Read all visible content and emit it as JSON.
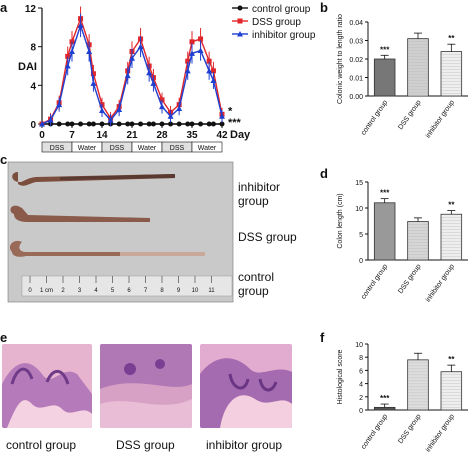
{
  "panels": {
    "a": "a",
    "b": "b",
    "c": "c",
    "d": "d",
    "e": "e",
    "f": "f"
  },
  "chart_data": [
    {
      "type": "line",
      "panel": "a",
      "ylabel": "DAI",
      "xlabel": "Day",
      "ylim": [
        0,
        12
      ],
      "yticks": [
        0,
        4,
        8,
        12
      ],
      "xticks": [
        0,
        7,
        14,
        21,
        28,
        35,
        42
      ],
      "xlim": [
        0,
        42
      ],
      "legend_position": "top-right",
      "significance": [
        "*",
        "***"
      ],
      "treatment_bands": [
        "DSS",
        "Water",
        "DSS",
        "Water",
        "DSS",
        "Water"
      ],
      "x": [
        0,
        2,
        4,
        6,
        7,
        9,
        11,
        12,
        14,
        16,
        18,
        20,
        21,
        23,
        25,
        26,
        28,
        30,
        32,
        34,
        35,
        37,
        39,
        40,
        42
      ],
      "series": [
        {
          "name": "control group",
          "color": "#111111",
          "marker": "circle",
          "values": [
            0,
            0,
            0,
            0,
            0,
            0,
            0,
            0,
            0,
            0,
            0,
            0,
            0,
            0,
            0,
            0,
            0,
            0,
            0,
            0,
            0,
            0,
            0,
            0,
            0
          ]
        },
        {
          "name": "DSS group",
          "color": "#e0262a",
          "marker": "square",
          "values": [
            0,
            0.5,
            2.2,
            7.0,
            8.5,
            10.9,
            8.2,
            5.2,
            2.0,
            0.6,
            1.8,
            5.5,
            7.5,
            8.8,
            6.0,
            4.8,
            2.5,
            1.2,
            2.0,
            6.5,
            8.5,
            8.8,
            6.5,
            5.5,
            1.0
          ]
        },
        {
          "name": "inhibitor group",
          "color": "#1f3fd1",
          "marker": "triangle",
          "values": [
            0,
            0.4,
            2.0,
            6.0,
            7.5,
            10.2,
            7.5,
            4.2,
            1.4,
            0.4,
            1.5,
            5.0,
            6.8,
            8.0,
            5.3,
            4.2,
            1.8,
            0.8,
            1.6,
            5.5,
            7.3,
            7.6,
            5.5,
            4.5,
            0.8
          ]
        }
      ]
    },
    {
      "type": "bar",
      "panel": "b",
      "ylabel": "Colonic weight to length ratio",
      "ylim": [
        0,
        0.04
      ],
      "yticks": [
        0.0,
        0.01,
        0.02,
        0.03,
        0.04
      ],
      "ytick_labels": [
        "0.00",
        "0.01",
        "0.02",
        "0.03",
        "0.04"
      ],
      "categories": [
        "control group",
        "DSS group",
        "inhibitor group"
      ],
      "values": [
        0.02,
        0.031,
        0.024
      ],
      "errors": [
        0.002,
        0.003,
        0.004
      ],
      "annotations": [
        "***",
        "",
        "**"
      ],
      "fills": [
        "#777777",
        "#cfcfcf",
        "#eeeeee"
      ]
    },
    {
      "type": "bar",
      "panel": "d",
      "ylabel": "Colon length (cm)",
      "ylim": [
        0,
        15
      ],
      "yticks": [
        0,
        5,
        10,
        15
      ],
      "ytick_labels": [
        "0",
        "5",
        "10",
        "15"
      ],
      "categories": [
        "control group",
        "DSS group",
        "inhibitor group"
      ],
      "values": [
        11.0,
        7.4,
        8.8
      ],
      "errors": [
        0.8,
        0.7,
        0.7
      ],
      "annotations": [
        "***",
        "",
        "**"
      ],
      "fills": [
        "#999999",
        "#d6d6d6",
        "#eeeeee"
      ]
    },
    {
      "type": "bar",
      "panel": "f",
      "ylabel": "Histological score",
      "ylim": [
        0,
        10
      ],
      "yticks": [
        0,
        2,
        4,
        6,
        8,
        10
      ],
      "ytick_labels": [
        "0",
        "2",
        "4",
        "6",
        "8",
        "10"
      ],
      "categories": [
        "control group",
        "DSS group",
        "inhibitor group"
      ],
      "values": [
        0.4,
        7.6,
        5.8
      ],
      "errors": [
        0.5,
        1.0,
        1.0
      ],
      "annotations": [
        "***",
        "",
        "**"
      ],
      "fills": [
        "#555555",
        "#dddddd",
        "#eeeeee"
      ]
    }
  ],
  "photo_c": {
    "labels": [
      "inhibitor group",
      "DSS group",
      "control group"
    ],
    "ruler_numbers": [
      "0",
      "1 cm",
      "2",
      "3",
      "4",
      "5",
      "6",
      "7",
      "8",
      "9",
      "10",
      "11"
    ]
  },
  "photo_e": {
    "labels": [
      "control group",
      "DSS group",
      "inhibitor group"
    ]
  },
  "colors": {
    "tissue": "#8a5a4a",
    "stain_pink": "#e3a7c6",
    "stain_purple": "#8b4a9c",
    "dss_band": "#e0e0e0"
  }
}
